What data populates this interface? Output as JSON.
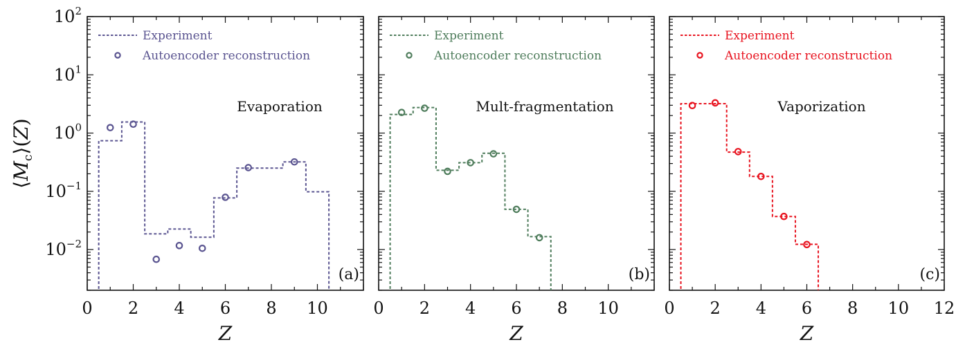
{
  "chart_data": {
    "type": "line",
    "shared": {
      "xlabel": "Z",
      "ylabel": "⟨M_c⟩(Z)",
      "ylabel_parts": {
        "open": "⟨",
        "M": "M",
        "sub": "c",
        "close": "⟩(",
        "Z": "Z",
        "end": ")"
      },
      "yscale": "log",
      "ylim": [
        0.002,
        100
      ],
      "xlim": [
        0,
        12
      ],
      "xticks": [
        0,
        2,
        4,
        6,
        8,
        10,
        12
      ],
      "yticks": [
        {
          "value": 0.01,
          "base": "10",
          "exp": "−2"
        },
        {
          "value": 0.1,
          "base": "10",
          "exp": "−1"
        },
        {
          "value": 1,
          "base": "10",
          "exp": "0"
        },
        {
          "value": 10,
          "base": "10",
          "exp": "1"
        },
        {
          "value": 100,
          "base": "10",
          "exp": "2"
        }
      ],
      "legend_location": "upper-left",
      "grid": false
    },
    "panels": [
      {
        "id": "a",
        "tag": "(a)",
        "title": "Evaporation",
        "color": "#5a5490",
        "xtick_labels": [
          "0",
          "2",
          "4",
          "6",
          "8",
          "10"
        ],
        "show_ytick_labels": true,
        "legend": [
          "Experiment",
          "Autoencoder reconstruction"
        ],
        "series": [
          {
            "name": "Experiment",
            "style": "dashed-step",
            "x": [
              1,
              2,
              3,
              4,
              5,
              6,
              7,
              8,
              9,
              10
            ],
            "values": [
              0.74,
              1.55,
              0.0186,
              0.0225,
              0.0163,
              0.077,
              0.25,
              0.25,
              0.32,
              0.098
            ]
          },
          {
            "name": "Autoencoder reconstruction",
            "style": "open-circle",
            "x": [
              1,
              2,
              3,
              4,
              5,
              6,
              7,
              9
            ],
            "values": [
              1.24,
              1.42,
              0.0068,
              0.0117,
              0.0105,
              0.079,
              0.255,
              0.32
            ]
          }
        ]
      },
      {
        "id": "b",
        "tag": "(b)",
        "title": "Mult-fragmentation",
        "color": "#4f7d5c",
        "xtick_labels": [
          "0",
          "2",
          "4",
          "6",
          "8",
          "10"
        ],
        "show_ytick_labels": false,
        "legend": [
          "Experiment",
          "Autoencoder reconstruction"
        ],
        "series": [
          {
            "name": "Experiment",
            "style": "dashed-step",
            "x": [
              1,
              2,
              3,
              4,
              5,
              6,
              7
            ],
            "values": [
              2.09,
              2.74,
              0.23,
              0.31,
              0.45,
              0.049,
              0.0167
            ]
          },
          {
            "name": "Autoencoder reconstruction",
            "style": "open-circle",
            "x": [
              1,
              2,
              3,
              4,
              5,
              6,
              7
            ],
            "values": [
              2.26,
              2.67,
              0.22,
              0.31,
              0.44,
              0.049,
              0.016
            ]
          }
        ]
      },
      {
        "id": "c",
        "tag": "(c)",
        "title": "Vaporization",
        "color": "#e8131f",
        "xtick_labels": [
          "0",
          "2",
          "4",
          "6",
          "8",
          "10",
          "12"
        ],
        "show_ytick_labels": false,
        "legend": [
          "Experiment",
          "Autoencoder reconstruction"
        ],
        "series": [
          {
            "name": "Experiment",
            "style": "dashed-step",
            "x": [
              1,
              2,
              3,
              4,
              5,
              6
            ],
            "values": [
              3.2,
              3.2,
              0.47,
              0.18,
              0.037,
              0.0123
            ]
          },
          {
            "name": "Autoencoder reconstruction",
            "style": "open-circle",
            "x": [
              1,
              2,
              3,
              4,
              5,
              6
            ],
            "values": [
              2.97,
              3.3,
              0.48,
              0.18,
              0.037,
              0.0122
            ]
          }
        ]
      }
    ]
  }
}
